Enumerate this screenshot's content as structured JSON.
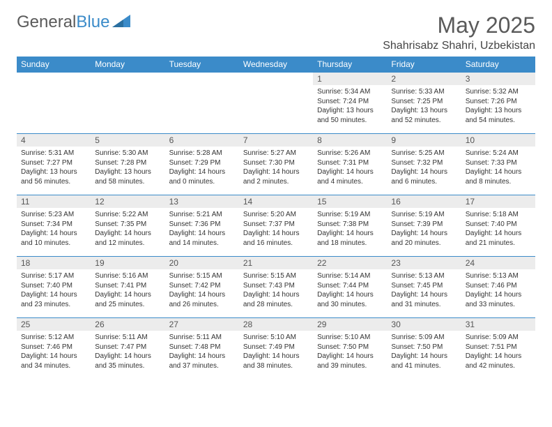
{
  "logo": {
    "text1": "General",
    "text2": "Blue"
  },
  "title": "May 2025",
  "location": "Shahrisabz Shahri, Uzbekistan",
  "colors": {
    "header_bg": "#3b8bc9",
    "header_fg": "#ffffff",
    "daynum_bg": "#ececec",
    "text": "#333333",
    "border": "#3b8bc9"
  },
  "weekdays": [
    "Sunday",
    "Monday",
    "Tuesday",
    "Wednesday",
    "Thursday",
    "Friday",
    "Saturday"
  ],
  "weeks": [
    [
      {
        "n": "",
        "sr": "",
        "ss": "",
        "dl1": "",
        "dl2": "",
        "empty": true
      },
      {
        "n": "",
        "sr": "",
        "ss": "",
        "dl1": "",
        "dl2": "",
        "empty": true
      },
      {
        "n": "",
        "sr": "",
        "ss": "",
        "dl1": "",
        "dl2": "",
        "empty": true
      },
      {
        "n": "",
        "sr": "",
        "ss": "",
        "dl1": "",
        "dl2": "",
        "empty": true
      },
      {
        "n": "1",
        "sr": "Sunrise: 5:34 AM",
        "ss": "Sunset: 7:24 PM",
        "dl1": "Daylight: 13 hours",
        "dl2": "and 50 minutes."
      },
      {
        "n": "2",
        "sr": "Sunrise: 5:33 AM",
        "ss": "Sunset: 7:25 PM",
        "dl1": "Daylight: 13 hours",
        "dl2": "and 52 minutes."
      },
      {
        "n": "3",
        "sr": "Sunrise: 5:32 AM",
        "ss": "Sunset: 7:26 PM",
        "dl1": "Daylight: 13 hours",
        "dl2": "and 54 minutes."
      }
    ],
    [
      {
        "n": "4",
        "sr": "Sunrise: 5:31 AM",
        "ss": "Sunset: 7:27 PM",
        "dl1": "Daylight: 13 hours",
        "dl2": "and 56 minutes."
      },
      {
        "n": "5",
        "sr": "Sunrise: 5:30 AM",
        "ss": "Sunset: 7:28 PM",
        "dl1": "Daylight: 13 hours",
        "dl2": "and 58 minutes."
      },
      {
        "n": "6",
        "sr": "Sunrise: 5:28 AM",
        "ss": "Sunset: 7:29 PM",
        "dl1": "Daylight: 14 hours",
        "dl2": "and 0 minutes."
      },
      {
        "n": "7",
        "sr": "Sunrise: 5:27 AM",
        "ss": "Sunset: 7:30 PM",
        "dl1": "Daylight: 14 hours",
        "dl2": "and 2 minutes."
      },
      {
        "n": "8",
        "sr": "Sunrise: 5:26 AM",
        "ss": "Sunset: 7:31 PM",
        "dl1": "Daylight: 14 hours",
        "dl2": "and 4 minutes."
      },
      {
        "n": "9",
        "sr": "Sunrise: 5:25 AM",
        "ss": "Sunset: 7:32 PM",
        "dl1": "Daylight: 14 hours",
        "dl2": "and 6 minutes."
      },
      {
        "n": "10",
        "sr": "Sunrise: 5:24 AM",
        "ss": "Sunset: 7:33 PM",
        "dl1": "Daylight: 14 hours",
        "dl2": "and 8 minutes."
      }
    ],
    [
      {
        "n": "11",
        "sr": "Sunrise: 5:23 AM",
        "ss": "Sunset: 7:34 PM",
        "dl1": "Daylight: 14 hours",
        "dl2": "and 10 minutes."
      },
      {
        "n": "12",
        "sr": "Sunrise: 5:22 AM",
        "ss": "Sunset: 7:35 PM",
        "dl1": "Daylight: 14 hours",
        "dl2": "and 12 minutes."
      },
      {
        "n": "13",
        "sr": "Sunrise: 5:21 AM",
        "ss": "Sunset: 7:36 PM",
        "dl1": "Daylight: 14 hours",
        "dl2": "and 14 minutes."
      },
      {
        "n": "14",
        "sr": "Sunrise: 5:20 AM",
        "ss": "Sunset: 7:37 PM",
        "dl1": "Daylight: 14 hours",
        "dl2": "and 16 minutes."
      },
      {
        "n": "15",
        "sr": "Sunrise: 5:19 AM",
        "ss": "Sunset: 7:38 PM",
        "dl1": "Daylight: 14 hours",
        "dl2": "and 18 minutes."
      },
      {
        "n": "16",
        "sr": "Sunrise: 5:19 AM",
        "ss": "Sunset: 7:39 PM",
        "dl1": "Daylight: 14 hours",
        "dl2": "and 20 minutes."
      },
      {
        "n": "17",
        "sr": "Sunrise: 5:18 AM",
        "ss": "Sunset: 7:40 PM",
        "dl1": "Daylight: 14 hours",
        "dl2": "and 21 minutes."
      }
    ],
    [
      {
        "n": "18",
        "sr": "Sunrise: 5:17 AM",
        "ss": "Sunset: 7:40 PM",
        "dl1": "Daylight: 14 hours",
        "dl2": "and 23 minutes."
      },
      {
        "n": "19",
        "sr": "Sunrise: 5:16 AM",
        "ss": "Sunset: 7:41 PM",
        "dl1": "Daylight: 14 hours",
        "dl2": "and 25 minutes."
      },
      {
        "n": "20",
        "sr": "Sunrise: 5:15 AM",
        "ss": "Sunset: 7:42 PM",
        "dl1": "Daylight: 14 hours",
        "dl2": "and 26 minutes."
      },
      {
        "n": "21",
        "sr": "Sunrise: 5:15 AM",
        "ss": "Sunset: 7:43 PM",
        "dl1": "Daylight: 14 hours",
        "dl2": "and 28 minutes."
      },
      {
        "n": "22",
        "sr": "Sunrise: 5:14 AM",
        "ss": "Sunset: 7:44 PM",
        "dl1": "Daylight: 14 hours",
        "dl2": "and 30 minutes."
      },
      {
        "n": "23",
        "sr": "Sunrise: 5:13 AM",
        "ss": "Sunset: 7:45 PM",
        "dl1": "Daylight: 14 hours",
        "dl2": "and 31 minutes."
      },
      {
        "n": "24",
        "sr": "Sunrise: 5:13 AM",
        "ss": "Sunset: 7:46 PM",
        "dl1": "Daylight: 14 hours",
        "dl2": "and 33 minutes."
      }
    ],
    [
      {
        "n": "25",
        "sr": "Sunrise: 5:12 AM",
        "ss": "Sunset: 7:46 PM",
        "dl1": "Daylight: 14 hours",
        "dl2": "and 34 minutes."
      },
      {
        "n": "26",
        "sr": "Sunrise: 5:11 AM",
        "ss": "Sunset: 7:47 PM",
        "dl1": "Daylight: 14 hours",
        "dl2": "and 35 minutes."
      },
      {
        "n": "27",
        "sr": "Sunrise: 5:11 AM",
        "ss": "Sunset: 7:48 PM",
        "dl1": "Daylight: 14 hours",
        "dl2": "and 37 minutes."
      },
      {
        "n": "28",
        "sr": "Sunrise: 5:10 AM",
        "ss": "Sunset: 7:49 PM",
        "dl1": "Daylight: 14 hours",
        "dl2": "and 38 minutes."
      },
      {
        "n": "29",
        "sr": "Sunrise: 5:10 AM",
        "ss": "Sunset: 7:50 PM",
        "dl1": "Daylight: 14 hours",
        "dl2": "and 39 minutes."
      },
      {
        "n": "30",
        "sr": "Sunrise: 5:09 AM",
        "ss": "Sunset: 7:50 PM",
        "dl1": "Daylight: 14 hours",
        "dl2": "and 41 minutes."
      },
      {
        "n": "31",
        "sr": "Sunrise: 5:09 AM",
        "ss": "Sunset: 7:51 PM",
        "dl1": "Daylight: 14 hours",
        "dl2": "and 42 minutes."
      }
    ]
  ]
}
